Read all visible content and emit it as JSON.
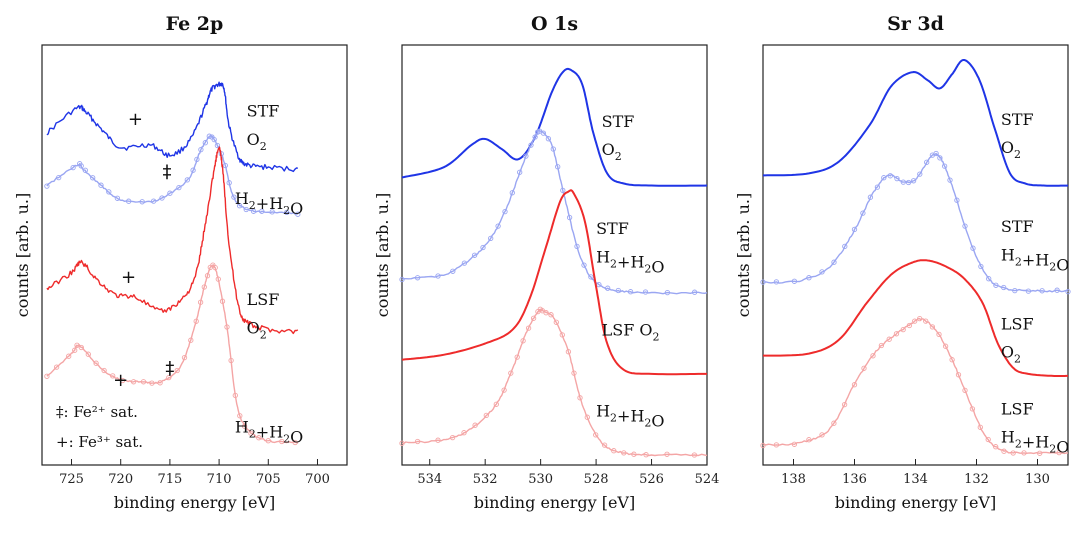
{
  "colors": {
    "stf_o2": "#1f35e6",
    "stf_h2": "#9aa6f2",
    "lsf_o2": "#ee2b2b",
    "lsf_h2": "#f4a5a5",
    "frame": "#222222"
  },
  "legend": {
    "fe2_line": "‡: Fe²⁺ sat.",
    "fe3_line": "+: Fe³⁺ sat."
  },
  "chart_data": [
    {
      "id": "fe2p",
      "type": "line",
      "title": "Fe 2p",
      "xlabel": "binding energy [eV]",
      "ylabel": "counts [arb. u.]",
      "xlim": [
        728,
        697
      ],
      "ylim": [
        0,
        10
      ],
      "xticks": [
        725,
        720,
        715,
        710,
        705,
        700
      ],
      "series": [
        {
          "name": "STF O2",
          "color": "stf_o2",
          "style": "noisy",
          "x": [
            727.5,
            724.5,
            723.5,
            722,
            720,
            717,
            715,
            713,
            711.5,
            710.8,
            710,
            709.5,
            709,
            708,
            707,
            705,
            702
          ],
          "values": [
            8.2,
            8.8,
            8.7,
            8.3,
            7.85,
            7.9,
            7.65,
            8.0,
            8.8,
            9.25,
            9.4,
            9.3,
            8.4,
            7.6,
            7.4,
            7.35,
            7.3
          ]
        },
        {
          "name": "STF H2+H2O",
          "color": "stf_h2",
          "style": "markers",
          "x": [
            727.5,
            724.5,
            723.8,
            722,
            720,
            717,
            715,
            713,
            712,
            711,
            710.4,
            709.5,
            708.5,
            707,
            705,
            702
          ],
          "values": [
            6.9,
            7.4,
            7.3,
            6.9,
            6.55,
            6.5,
            6.7,
            7.1,
            7.7,
            8.1,
            8.0,
            7.5,
            6.6,
            6.3,
            6.25,
            6.2
          ]
        },
        {
          "name": "LSF O2",
          "color": "lsf_o2",
          "style": "noisy",
          "x": [
            727.5,
            725,
            724,
            722.5,
            720.5,
            718.5,
            716,
            714,
            712.5,
            711.5,
            710.5,
            710,
            709.6,
            709,
            708,
            707,
            705,
            702
          ],
          "values": [
            4.35,
            4.75,
            5.0,
            4.6,
            4.2,
            4.15,
            3.8,
            4.05,
            4.6,
            5.8,
            7.3,
            7.8,
            7.2,
            5.5,
            3.9,
            3.5,
            3.35,
            3.3
          ]
        },
        {
          "name": "LSF H2+H2O",
          "color": "lsf_h2",
          "style": "markers",
          "x": [
            727.5,
            725,
            724.2,
            722.5,
            720.5,
            718,
            716,
            714,
            712.5,
            711.5,
            710.8,
            710.2,
            709.2,
            708.2,
            707,
            705,
            702
          ],
          "values": [
            2.2,
            2.75,
            2.95,
            2.5,
            2.15,
            2.05,
            2.05,
            2.4,
            3.4,
            4.4,
            4.9,
            4.7,
            3.4,
            1.5,
            0.85,
            0.6,
            0.55
          ]
        }
      ],
      "annotations": [
        {
          "text": "STF",
          "x": 707.2,
          "y": 8.6
        },
        {
          "text": "O",
          "sub": "2",
          "x": 707.2,
          "y": 7.9
        },
        {
          "text": "H",
          "sub": "2",
          "text2": "+H",
          "sub2": "2",
          "text3": "O",
          "x": 708.4,
          "y": 6.45
        },
        {
          "text": "LSF",
          "x": 707.2,
          "y": 3.95
        },
        {
          "text": "O",
          "sub": "2",
          "x": 707.2,
          "y": 3.25
        },
        {
          "text": "H",
          "sub": "2",
          "text2": "+H",
          "sub2": "2",
          "text3": "O",
          "x": 708.4,
          "y": 0.8
        }
      ],
      "markers": [
        {
          "text": "+",
          "x": 718.5,
          "y": 8.4
        },
        {
          "text": "‡",
          "x": 715.3,
          "y": 7.1
        },
        {
          "text": "+",
          "x": 719.2,
          "y": 4.5
        },
        {
          "text": "+",
          "x": 720.0,
          "y": 1.95
        },
        {
          "text": "‡",
          "x": 715.0,
          "y": 2.25
        }
      ]
    },
    {
      "id": "o1s",
      "type": "line",
      "title": "O 1s",
      "xlabel": "binding energy [eV]",
      "ylabel": "counts [arb. u.]",
      "xlim": [
        535,
        524
      ],
      "ylim": [
        0,
        10
      ],
      "xticks": [
        534,
        532,
        530,
        528,
        526,
        524
      ],
      "series": [
        {
          "name": "STF O2",
          "color": "stf_o2",
          "style": "smooth",
          "x": [
            535,
            533.5,
            532.5,
            532,
            531.4,
            530.8,
            530.2,
            529.6,
            529.2,
            528.9,
            528.5,
            528.1,
            527.6,
            527,
            526,
            524
          ],
          "values": [
            7.1,
            7.35,
            7.9,
            8.05,
            7.8,
            7.55,
            8.1,
            9.2,
            9.7,
            9.75,
            9.4,
            8.2,
            7.2,
            6.95,
            6.9,
            6.9
          ]
        },
        {
          "name": "STF H2+H2O",
          "color": "stf_h2",
          "style": "markers",
          "x": [
            535,
            533.5,
            532.5,
            531.8,
            531.2,
            530.6,
            530.2,
            530.0,
            529.6,
            529.2,
            528.6,
            528,
            527.2,
            526,
            524
          ],
          "values": [
            4.6,
            4.7,
            5.1,
            5.6,
            6.4,
            7.5,
            8.1,
            8.25,
            7.9,
            6.8,
            5.2,
            4.5,
            4.3,
            4.25,
            4.25
          ]
        },
        {
          "name": "LSF O2",
          "color": "lsf_o2",
          "style": "smooth",
          "x": [
            535,
            533.5,
            532,
            531,
            530.4,
            529.8,
            529.3,
            529.0,
            528.8,
            528.4,
            528,
            527.6,
            527,
            526,
            524
          ],
          "values": [
            2.6,
            2.72,
            3.0,
            3.35,
            4.1,
            5.4,
            6.5,
            6.75,
            6.7,
            6.0,
            4.4,
            3.0,
            2.35,
            2.25,
            2.25
          ]
        },
        {
          "name": "LSF H2+H2O",
          "color": "lsf_h2",
          "style": "markers",
          "x": [
            535,
            533.5,
            532.5,
            531.6,
            531,
            530.5,
            530.1,
            529.9,
            529.5,
            529,
            528.5,
            527.8,
            527,
            526,
            524
          ],
          "values": [
            0.55,
            0.62,
            0.9,
            1.5,
            2.4,
            3.3,
            3.78,
            3.8,
            3.6,
            2.8,
            1.5,
            0.55,
            0.3,
            0.25,
            0.25
          ]
        }
      ],
      "annotations": [
        {
          "text": "STF",
          "x": 527.8,
          "y": 8.35
        },
        {
          "text": "O",
          "sub": "2",
          "x": 527.8,
          "y": 7.65
        },
        {
          "text": "STF",
          "x": 528.0,
          "y": 5.7
        },
        {
          "text": "H",
          "sub": "2",
          "text2": "+H",
          "sub2": "2",
          "text3": "O",
          "x": 528.0,
          "y": 5.0
        },
        {
          "text": "LSF O",
          "sub": "2",
          "x": 527.8,
          "y": 3.2
        },
        {
          "text": "H",
          "sub": "2",
          "text2": "+H",
          "sub2": "2",
          "text3": "O",
          "x": 528.0,
          "y": 1.2
        }
      ],
      "markers": []
    },
    {
      "id": "sr3d",
      "type": "line",
      "title": "Sr 3d",
      "xlabel": "binding energy [eV]",
      "ylabel": "counts [arb. u.]",
      "xlim": [
        139,
        129
      ],
      "ylim": [
        0,
        10
      ],
      "xticks": [
        138,
        136,
        134,
        132,
        130
      ],
      "series": [
        {
          "name": "STF O2",
          "color": "stf_o2",
          "style": "smooth",
          "x": [
            139,
            137.5,
            136.5,
            135.5,
            134.8,
            134.1,
            133.6,
            133.2,
            132.8,
            132.4,
            131.9,
            131.4,
            130.9,
            130.4,
            129.8,
            129
          ],
          "values": [
            7.15,
            7.2,
            7.5,
            8.4,
            9.35,
            9.7,
            9.5,
            9.3,
            9.65,
            10.0,
            9.5,
            8.3,
            7.2,
            6.95,
            6.9,
            6.9
          ]
        },
        {
          "name": "STF H2+H2O",
          "color": "stf_h2",
          "style": "markers",
          "x": [
            139,
            137.8,
            136.8,
            136,
            135.4,
            134.9,
            134.4,
            134,
            133.5,
            133.2,
            132.8,
            132.2,
            131.6,
            131,
            130,
            129
          ],
          "values": [
            4.5,
            4.55,
            4.9,
            5.8,
            6.7,
            7.15,
            7.0,
            7.05,
            7.6,
            7.6,
            6.9,
            5.5,
            4.6,
            4.35,
            4.3,
            4.3
          ]
        },
        {
          "name": "LSF O2",
          "color": "lsf_o2",
          "style": "smooth",
          "x": [
            139,
            137.5,
            136.5,
            135.6,
            134.8,
            134.1,
            133.6,
            133,
            132.4,
            131.8,
            131.3,
            130.8,
            130.3,
            129.5,
            129
          ],
          "values": [
            2.7,
            2.75,
            3.1,
            4.0,
            4.7,
            5.0,
            5.05,
            4.9,
            4.6,
            4.0,
            3.0,
            2.4,
            2.25,
            2.2,
            2.2
          ]
        },
        {
          "name": "LSF H2+H2O",
          "color": "lsf_h2",
          "style": "markers",
          "x": [
            139,
            137.8,
            136.8,
            136,
            135.3,
            134.7,
            134.2,
            133.8,
            133.3,
            132.8,
            132.3,
            131.7,
            131.1,
            130.3,
            129
          ],
          "values": [
            0.5,
            0.55,
            0.9,
            2.0,
            2.8,
            3.2,
            3.45,
            3.6,
            3.3,
            2.6,
            1.7,
            0.7,
            0.35,
            0.3,
            0.3
          ]
        }
      ],
      "annotations": [
        {
          "text": "STF",
          "x": 131.2,
          "y": 8.4
        },
        {
          "text": "O",
          "sub": "2",
          "x": 131.2,
          "y": 7.7
        },
        {
          "text": "STF",
          "x": 131.2,
          "y": 5.75
        },
        {
          "text": "H",
          "sub": "2",
          "text2": "+H",
          "sub2": "2",
          "text3": "O",
          "x": 131.2,
          "y": 5.05
        },
        {
          "text": "LSF",
          "x": 131.2,
          "y": 3.35
        },
        {
          "text": "O",
          "sub": "2",
          "x": 131.2,
          "y": 2.65
        },
        {
          "text": "LSF",
          "x": 131.2,
          "y": 1.25
        },
        {
          "text": "H",
          "sub": "2",
          "text2": "+H",
          "sub2": "2",
          "text3": "O",
          "x": 131.2,
          "y": 0.55
        }
      ],
      "markers": []
    }
  ]
}
